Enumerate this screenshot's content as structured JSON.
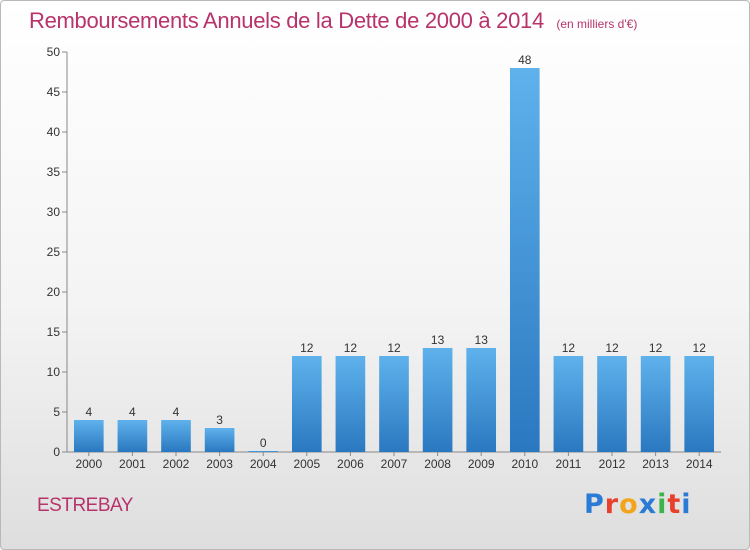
{
  "header": {
    "title": "Remboursements Annuels de la Dette de 2000 à 2014",
    "unit": "(en milliers d'€)"
  },
  "footer": {
    "commune": "ESTREBAY",
    "logo_text": "Proxiti",
    "logo_colors": [
      "#2a7bd6",
      "#e8402b",
      "#f2a51c",
      "#2a7bd6",
      "#3bb54a",
      "#e8402b",
      "#2a7bd6"
    ]
  },
  "colors": {
    "bar": "#3f99de",
    "bar_light": "#5fb2ec",
    "bar_dark": "#2a78c0",
    "title": "#b8336a"
  },
  "chart_data": {
    "type": "bar",
    "title": "Remboursements Annuels de la Dette de 2000 à 2014",
    "subtitle": "(en milliers d'€)",
    "categories": [
      "2000",
      "2001",
      "2002",
      "2003",
      "2004",
      "2005",
      "2006",
      "2007",
      "2008",
      "2009",
      "2010",
      "2011",
      "2012",
      "2013",
      "2014"
    ],
    "values": [
      4,
      4,
      4,
      3,
      0,
      12,
      12,
      12,
      13,
      13,
      48,
      12,
      12,
      12,
      12
    ],
    "ylim": [
      0,
      50
    ],
    "yticks": [
      0,
      5,
      10,
      15,
      20,
      25,
      30,
      35,
      40,
      45,
      50
    ],
    "grid": false,
    "legend": "none"
  }
}
